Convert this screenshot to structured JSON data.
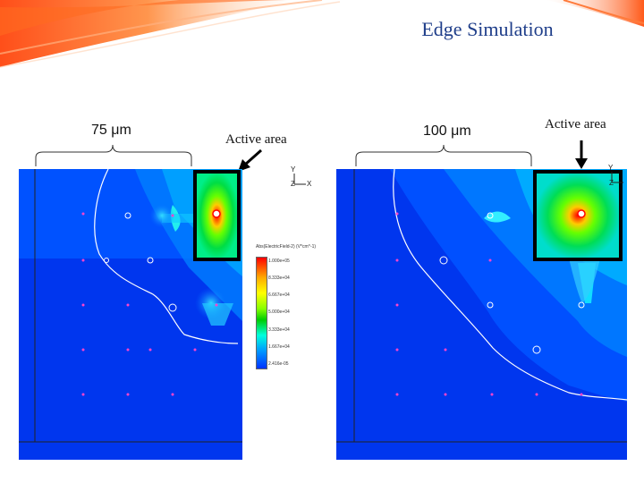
{
  "slide": {
    "title": "Edge Simulation"
  },
  "left_panel": {
    "width_label": "75 μm",
    "active_label": "Active area",
    "axis_y": "Y",
    "axis_z": "Z",
    "axis_x": "X",
    "colorbar": {
      "title": "Abs(ElectricField-2) (V*cm^-1)",
      "ticks": [
        "1.000e+05",
        "8.333e+04",
        "6.667e+04",
        "5.000e+04",
        "3.333e+04",
        "1.667e+04",
        "2.416e-05"
      ]
    }
  },
  "right_panel": {
    "width_label": "100 μm",
    "active_label": "Active area",
    "axis_y": "Y",
    "axis_z": "Z"
  },
  "colors": {
    "title": "#1f3e8a",
    "field_background": "#0033ee",
    "active_box": "#000000",
    "hot_spot": "#ff0000"
  }
}
